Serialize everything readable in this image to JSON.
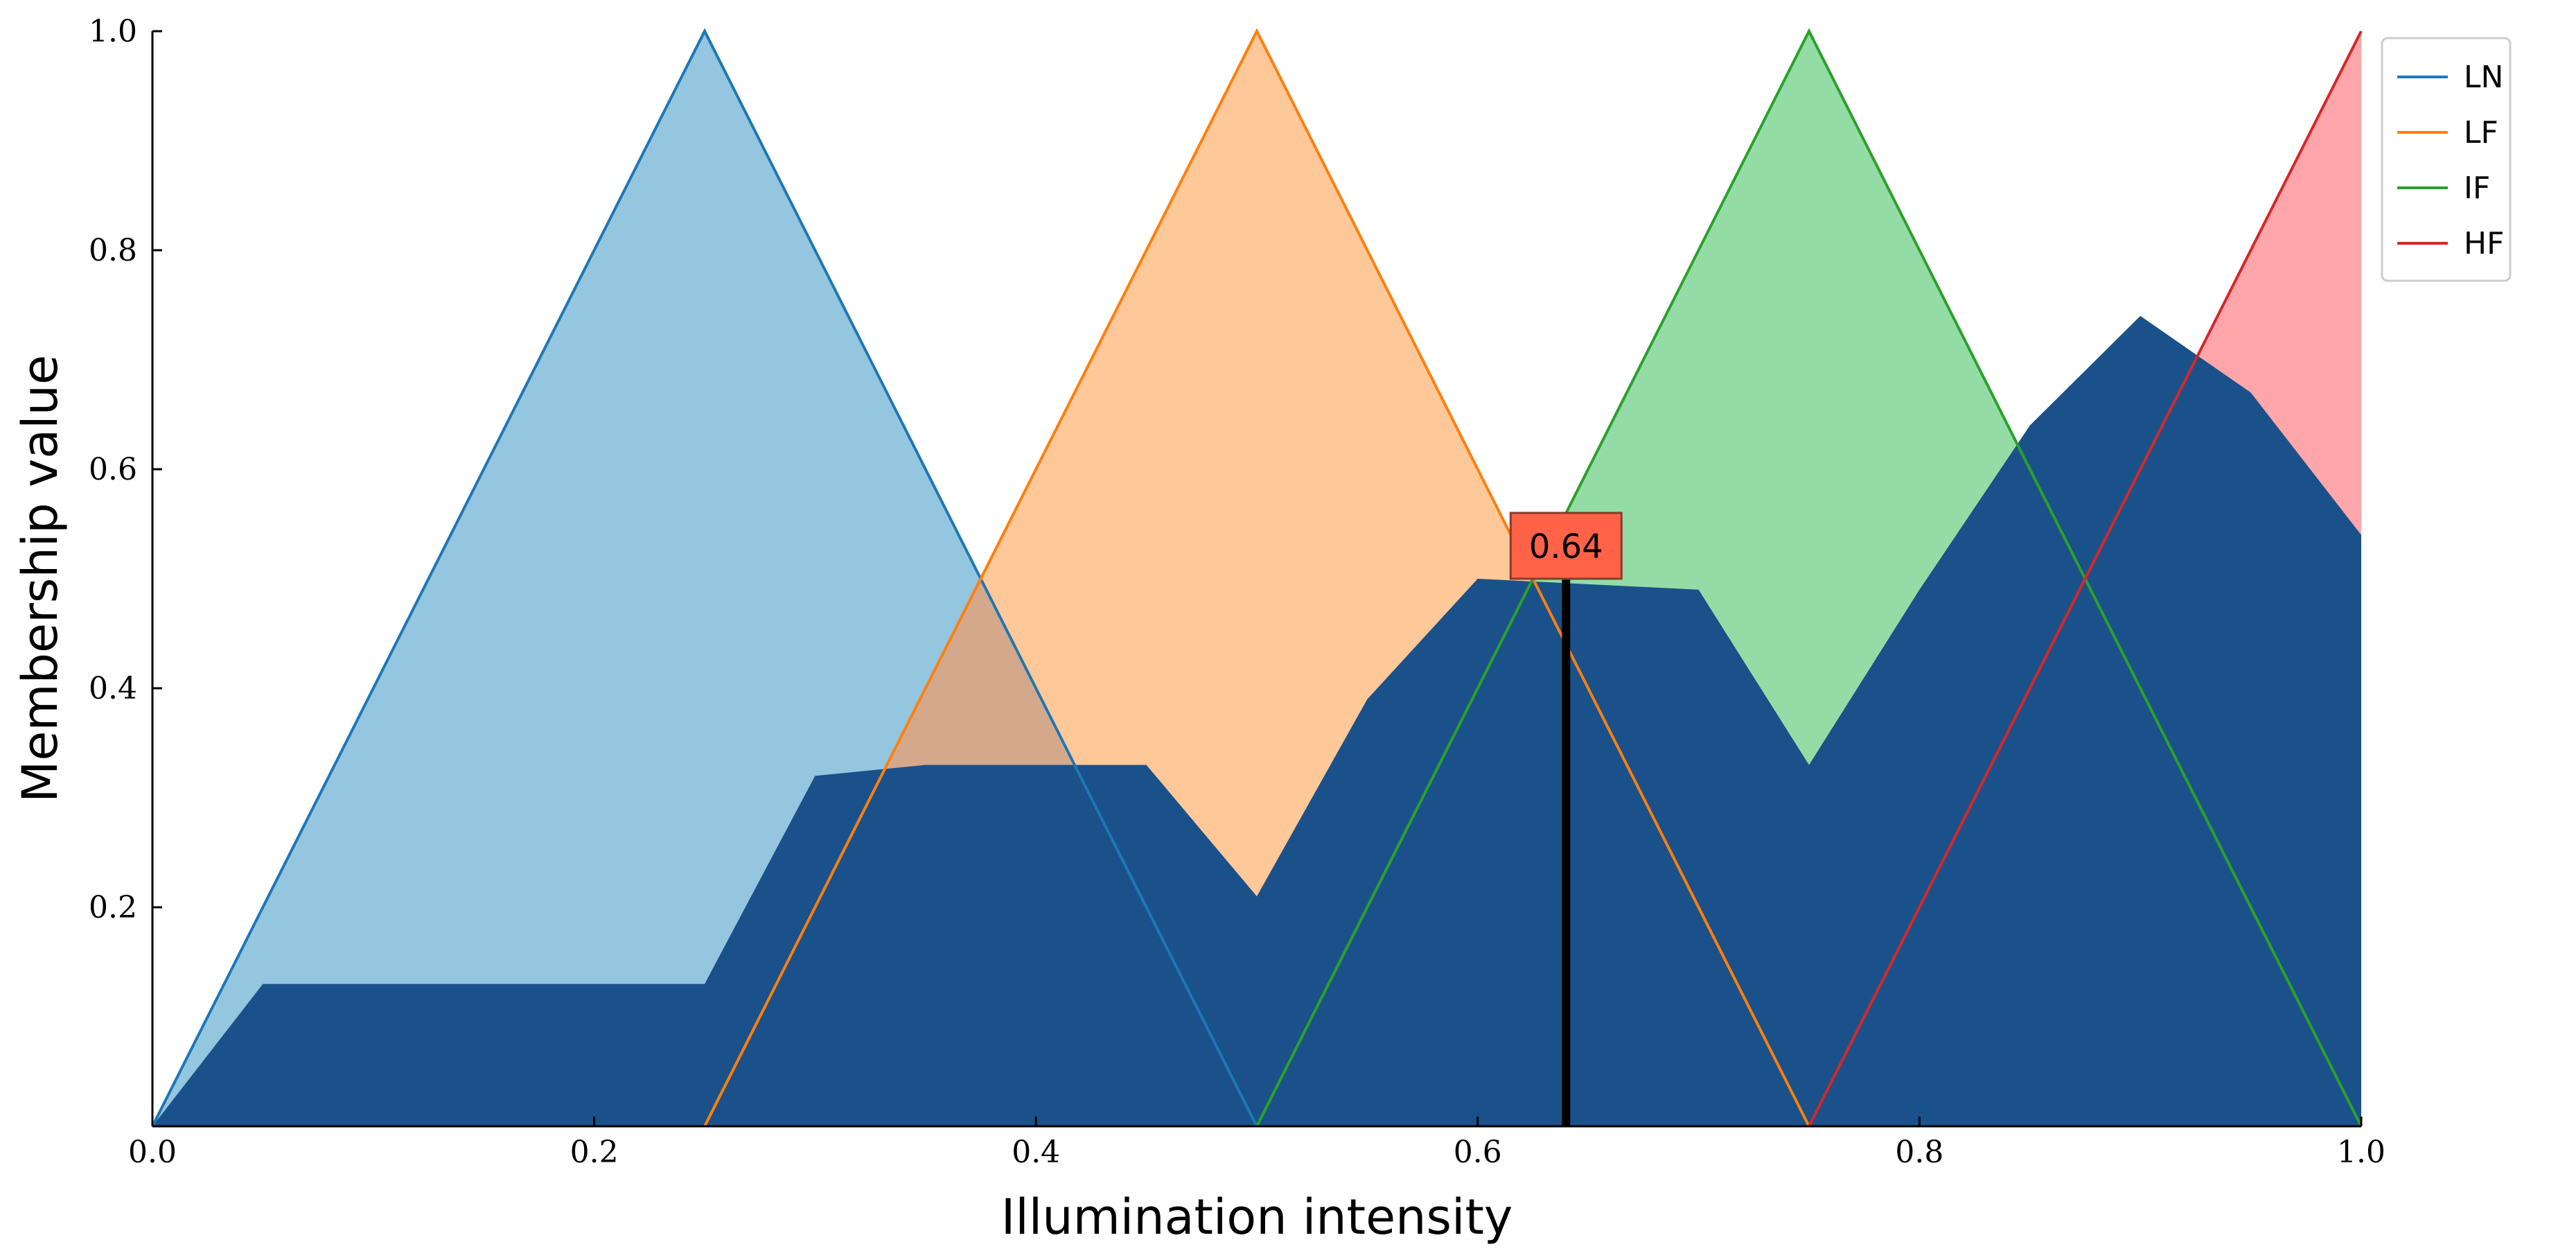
{
  "chart_data": {
    "type": "area",
    "title": "",
    "xlabel": "Illumination intensity",
    "ylabel": "Membership value",
    "xlim": [
      0.0,
      1.0
    ],
    "ylim": [
      0.0,
      1.0
    ],
    "xticks": [
      0.0,
      0.2,
      0.4,
      0.6,
      0.8,
      1.0
    ],
    "yticks": [
      0.2,
      0.4,
      0.6,
      0.8,
      1.0
    ],
    "xtick_labels": [
      "0.0",
      "0.2",
      "0.4",
      "0.6",
      "0.8",
      "1.0"
    ],
    "ytick_labels": [
      "0.2",
      "0.4",
      "0.6",
      "0.8",
      "1.0"
    ],
    "grid": false,
    "legend": {
      "position": "top-right"
    },
    "series": [
      {
        "name": "LN",
        "color": "#1f77b4",
        "fill": "#94c6e0",
        "x": [
          0.0,
          0.25,
          0.5
        ],
        "y": [
          0.0,
          1.0,
          0.0
        ]
      },
      {
        "name": "LF",
        "color": "#ff7f0e",
        "fill": "#ffc899",
        "x": [
          0.25,
          0.5,
          0.75
        ],
        "y": [
          0.0,
          1.0,
          0.0
        ]
      },
      {
        "name": "IF",
        "color": "#2ca02c",
        "fill": "#94dca6",
        "x": [
          0.5,
          0.75,
          1.0
        ],
        "y": [
          0.0,
          1.0,
          0.0
        ]
      },
      {
        "name": "HF",
        "color": "#d62728",
        "fill": "#ffa6aa",
        "x": [
          0.75,
          1.0
        ],
        "y": [
          0.0,
          1.0
        ]
      }
    ],
    "aggregated": {
      "color": "#1a518a",
      "x": [
        0.0,
        0.05,
        0.25,
        0.3,
        0.35,
        0.45,
        0.5,
        0.55,
        0.6,
        0.7,
        0.75,
        0.8,
        0.85,
        0.9,
        0.95,
        1.0
      ],
      "y": [
        0.0,
        0.13,
        0.13,
        0.32,
        0.33,
        0.33,
        0.21,
        0.39,
        0.5,
        0.49,
        0.33,
        0.49,
        0.64,
        0.74,
        0.67,
        0.54
      ]
    },
    "overlap_fill": "#d4a98b",
    "annotation": {
      "x": 0.64,
      "label": "0.64",
      "box_color": "#ff6347",
      "line_color": "#000000"
    }
  }
}
